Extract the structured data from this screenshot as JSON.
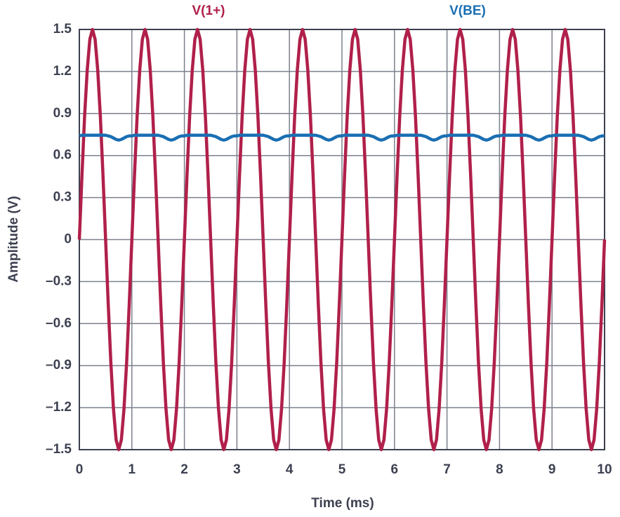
{
  "chart_data": {
    "type": "line",
    "xlabel": "Time (ms)",
    "ylabel": "Amplitude (V)",
    "x": [
      0,
      0.05,
      0.1,
      0.15,
      0.2,
      0.25,
      0.3,
      0.35,
      0.4,
      0.45,
      0.5,
      0.55,
      0.6,
      0.65,
      0.7,
      0.75,
      0.8,
      0.85,
      0.9,
      0.95,
      1,
      1.05,
      1.1,
      1.15,
      1.2,
      1.25,
      1.3,
      1.35,
      1.4,
      1.45,
      1.5,
      1.55,
      1.6,
      1.65,
      1.7,
      1.75,
      1.8,
      1.85,
      1.9,
      1.95,
      2,
      2.05,
      2.1,
      2.15,
      2.2,
      2.25,
      2.3,
      2.35,
      2.4,
      2.45,
      2.5,
      2.55,
      2.6,
      2.65,
      2.7,
      2.75,
      2.8,
      2.85,
      2.9,
      2.95,
      3,
      3.05,
      3.1,
      3.15,
      3.2,
      3.25,
      3.3,
      3.35,
      3.4,
      3.45,
      3.5,
      3.55,
      3.6,
      3.65,
      3.7,
      3.75,
      3.8,
      3.85,
      3.9,
      3.95,
      4,
      4.05,
      4.1,
      4.15,
      4.2,
      4.25,
      4.3,
      4.35,
      4.4,
      4.45,
      4.5,
      4.55,
      4.6,
      4.65,
      4.7,
      4.75,
      4.8,
      4.85,
      4.9,
      4.95,
      5,
      5.05,
      5.1,
      5.15,
      5.2,
      5.25,
      5.3,
      5.35,
      5.4,
      5.45,
      5.5,
      5.55,
      5.6,
      5.65,
      5.7,
      5.75,
      5.8,
      5.85,
      5.9,
      5.95,
      6,
      6.05,
      6.1,
      6.15,
      6.2,
      6.25,
      6.3,
      6.35,
      6.4,
      6.45,
      6.5,
      6.55,
      6.6,
      6.65,
      6.7,
      6.75,
      6.8,
      6.85,
      6.9,
      6.95,
      7,
      7.05,
      7.1,
      7.15,
      7.2,
      7.25,
      7.3,
      7.35,
      7.4,
      7.45,
      7.5,
      7.55,
      7.6,
      7.65,
      7.7,
      7.75,
      7.8,
      7.85,
      7.9,
      7.95,
      8,
      8.05,
      8.1,
      8.15,
      8.2,
      8.25,
      8.3,
      8.35,
      8.4,
      8.45,
      8.5,
      8.55,
      8.6,
      8.65,
      8.7,
      8.75,
      8.8,
      8.85,
      8.9,
      8.95,
      9,
      9.05,
      9.1,
      9.15,
      9.2,
      9.25,
      9.3,
      9.35,
      9.4,
      9.45,
      9.5,
      9.55,
      9.6,
      9.65,
      9.7,
      9.75,
      9.8,
      9.85,
      9.9,
      9.95,
      10
    ],
    "series": [
      {
        "name": "V(1+)",
        "color": "#b0204a",
        "values": [
          0,
          0.46,
          0.88,
          1.21,
          1.43,
          1.5,
          1.43,
          1.21,
          0.88,
          0.46,
          0,
          -0.46,
          -0.88,
          -1.21,
          -1.43,
          -1.5,
          -1.43,
          -1.21,
          -0.88,
          -0.46,
          0,
          0.46,
          0.88,
          1.21,
          1.43,
          1.5,
          1.43,
          1.21,
          0.88,
          0.46,
          0,
          -0.46,
          -0.88,
          -1.21,
          -1.43,
          -1.5,
          -1.43,
          -1.21,
          -0.88,
          -0.46,
          0,
          0.46,
          0.88,
          1.21,
          1.43,
          1.5,
          1.43,
          1.21,
          0.88,
          0.46,
          0,
          -0.46,
          -0.88,
          -1.21,
          -1.43,
          -1.5,
          -1.43,
          -1.21,
          -0.88,
          -0.46,
          0,
          0.46,
          0.88,
          1.21,
          1.43,
          1.5,
          1.43,
          1.21,
          0.88,
          0.46,
          0,
          -0.46,
          -0.88,
          -1.21,
          -1.43,
          -1.5,
          -1.43,
          -1.21,
          -0.88,
          -0.46,
          0,
          0.46,
          0.88,
          1.21,
          1.43,
          1.5,
          1.43,
          1.21,
          0.88,
          0.46,
          0,
          -0.46,
          -0.88,
          -1.21,
          -1.43,
          -1.5,
          -1.43,
          -1.21,
          -0.88,
          -0.46,
          0,
          0.46,
          0.88,
          1.21,
          1.43,
          1.5,
          1.43,
          1.21,
          0.88,
          0.46,
          0,
          -0.46,
          -0.88,
          -1.21,
          -1.43,
          -1.5,
          -1.43,
          -1.21,
          -0.88,
          -0.46,
          0,
          0.46,
          0.88,
          1.21,
          1.43,
          1.5,
          1.43,
          1.21,
          0.88,
          0.46,
          0,
          -0.46,
          -0.88,
          -1.21,
          -1.43,
          -1.5,
          -1.43,
          -1.21,
          -0.88,
          -0.46,
          0,
          0.46,
          0.88,
          1.21,
          1.43,
          1.5,
          1.43,
          1.21,
          0.88,
          0.46,
          0,
          -0.46,
          -0.88,
          -1.21,
          -1.43,
          -1.5,
          -1.43,
          -1.21,
          -0.88,
          -0.46,
          0,
          0.46,
          0.88,
          1.21,
          1.43,
          1.5,
          1.43,
          1.21,
          0.88,
          0.46,
          0,
          -0.46,
          -0.88,
          -1.21,
          -1.43,
          -1.5,
          -1.43,
          -1.21,
          -0.88,
          -0.46,
          0,
          0.46,
          0.88,
          1.21,
          1.43,
          1.5,
          1.43,
          1.21,
          0.88,
          0.46,
          0,
          -0.46,
          -0.88,
          -1.21,
          -1.43,
          -1.5,
          -1.43,
          -1.21,
          -0.88,
          -0.46,
          0
        ]
      },
      {
        "name": "V(BE)",
        "color": "#1a6fb3",
        "values": [
          0.74,
          0.745,
          0.745,
          0.745,
          0.745,
          0.745,
          0.745,
          0.745,
          0.745,
          0.745,
          0.745,
          0.74,
          0.735,
          0.725,
          0.715,
          0.71,
          0.715,
          0.725,
          0.735,
          0.74,
          0.74,
          0.745,
          0.745,
          0.745,
          0.745,
          0.745,
          0.745,
          0.745,
          0.745,
          0.745,
          0.745,
          0.74,
          0.735,
          0.725,
          0.715,
          0.71,
          0.715,
          0.725,
          0.735,
          0.74,
          0.74,
          0.745,
          0.745,
          0.745,
          0.745,
          0.745,
          0.745,
          0.745,
          0.745,
          0.745,
          0.745,
          0.74,
          0.735,
          0.725,
          0.715,
          0.71,
          0.715,
          0.725,
          0.735,
          0.74,
          0.74,
          0.745,
          0.745,
          0.745,
          0.745,
          0.745,
          0.745,
          0.745,
          0.745,
          0.745,
          0.745,
          0.74,
          0.735,
          0.725,
          0.715,
          0.71,
          0.715,
          0.725,
          0.735,
          0.74,
          0.74,
          0.745,
          0.745,
          0.745,
          0.745,
          0.745,
          0.745,
          0.745,
          0.745,
          0.745,
          0.745,
          0.74,
          0.735,
          0.725,
          0.715,
          0.71,
          0.715,
          0.725,
          0.735,
          0.74,
          0.74,
          0.745,
          0.745,
          0.745,
          0.745,
          0.745,
          0.745,
          0.745,
          0.745,
          0.745,
          0.745,
          0.74,
          0.735,
          0.725,
          0.715,
          0.71,
          0.715,
          0.725,
          0.735,
          0.74,
          0.74,
          0.745,
          0.745,
          0.745,
          0.745,
          0.745,
          0.745,
          0.745,
          0.745,
          0.745,
          0.745,
          0.74,
          0.735,
          0.725,
          0.715,
          0.71,
          0.715,
          0.725,
          0.735,
          0.74,
          0.74,
          0.745,
          0.745,
          0.745,
          0.745,
          0.745,
          0.745,
          0.745,
          0.745,
          0.745,
          0.745,
          0.74,
          0.735,
          0.725,
          0.715,
          0.71,
          0.715,
          0.725,
          0.735,
          0.74,
          0.74,
          0.745,
          0.745,
          0.745,
          0.745,
          0.745,
          0.745,
          0.745,
          0.745,
          0.745,
          0.745,
          0.74,
          0.735,
          0.725,
          0.715,
          0.71,
          0.715,
          0.725,
          0.735,
          0.74,
          0.74,
          0.745,
          0.745,
          0.745,
          0.745,
          0.745,
          0.745,
          0.745,
          0.745,
          0.745,
          0.745,
          0.74,
          0.735,
          0.725,
          0.715,
          0.71,
          0.715,
          0.725,
          0.735,
          0.74,
          0.74
        ]
      }
    ],
    "xlim": [
      0,
      10
    ],
    "xticks": [
      0,
      1,
      2,
      3,
      4,
      5,
      6,
      7,
      8,
      9,
      10
    ],
    "ylim": [
      -1.5,
      1.5
    ],
    "yticks": [
      {
        "value": -1.5,
        "label": "–1.5"
      },
      {
        "value": -1.2,
        "label": "–1.2"
      },
      {
        "value": -0.9,
        "label": "–0.9"
      },
      {
        "value": -0.6,
        "label": "–0.6"
      },
      {
        "value": -0.3,
        "label": "–0.3"
      },
      0,
      0.3,
      0.6,
      0.9,
      1.2,
      1.5
    ],
    "grid": true,
    "legend": "top"
  }
}
